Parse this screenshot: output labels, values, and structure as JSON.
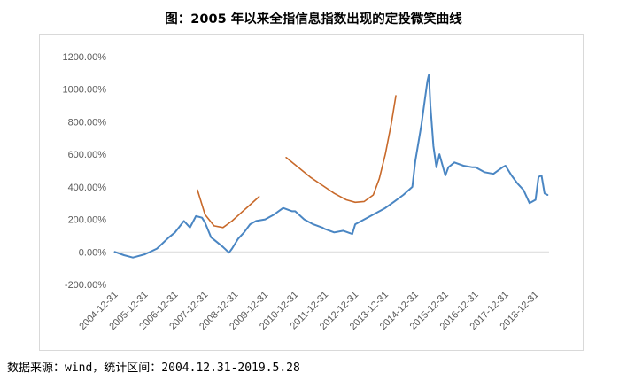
{
  "title": "图：2005 年以来全指信息指数出现的定投微笑曲线",
  "source": "数据来源：wind，统计区间：2004.12.31-2019.5.28",
  "colors": {
    "index_line": "#4a86c3",
    "smile_curve": "#c8692a",
    "axis": "#d9d9d9",
    "text": "#595959"
  },
  "chart_data": {
    "type": "line",
    "title": "图：2005 年以来全指信息指数出现的定投微笑曲线",
    "xlabel": "",
    "ylabel": "",
    "ylim": [
      -200,
      1200
    ],
    "yticks": [
      -200,
      0,
      200,
      400,
      600,
      800,
      1000,
      1200
    ],
    "ytick_labels": [
      "-200.00%",
      "0.00%",
      "200.00%",
      "400.00%",
      "600.00%",
      "800.00%",
      "1000.00%",
      "1200.00%"
    ],
    "xlim": [
      2004.95,
      2019.45
    ],
    "xticks": [
      "2004-12-31",
      "2005-12-31",
      "2006-12-31",
      "2007-12-31",
      "2008-12-31",
      "2009-12-31",
      "2010-12-31",
      "2011-12-31",
      "2012-12-31",
      "2013-12-31",
      "2014-12-31",
      "2015-12-31",
      "2016-12-31",
      "2017-12-31",
      "2018-12-31"
    ],
    "grid": false,
    "series": [
      {
        "kind": "index",
        "x": [
          2005.0,
          2005.3,
          2005.6,
          2006.0,
          2006.4,
          2006.8,
          2007.0,
          2007.3,
          2007.5,
          2007.7,
          2007.9,
          2008.0,
          2008.2,
          2008.4,
          2008.6,
          2008.8,
          2008.9,
          2009.1,
          2009.3,
          2009.5,
          2009.7,
          2010.0,
          2010.3,
          2010.6,
          2010.9,
          2011.0,
          2011.3,
          2011.6,
          2011.9,
          2012.0,
          2012.3,
          2012.6,
          2012.9,
          2013.0,
          2013.3,
          2013.6,
          2013.9,
          2014.0,
          2014.3,
          2014.6,
          2014.9,
          2015.0,
          2015.2,
          2015.4,
          2015.45,
          2015.5,
          2015.6,
          2015.7,
          2015.8,
          2016.0,
          2016.1,
          2016.3,
          2016.6,
          2016.9,
          2017.0,
          2017.3,
          2017.6,
          2017.9,
          2018.0,
          2018.2,
          2018.4,
          2018.6,
          2018.8,
          2019.0,
          2019.1,
          2019.2,
          2019.3,
          2019.4
        ],
        "values": [
          0,
          -20,
          -35,
          -15,
          20,
          90,
          120,
          190,
          150,
          220,
          210,
          180,
          90,
          60,
          30,
          -5,
          20,
          80,
          120,
          170,
          190,
          200,
          230,
          270,
          250,
          250,
          200,
          170,
          150,
          140,
          120,
          130,
          110,
          170,
          200,
          230,
          260,
          270,
          310,
          350,
          400,
          560,
          780,
          1050,
          1090,
          900,
          650,
          520,
          600,
          470,
          520,
          550,
          530,
          520,
          520,
          490,
          480,
          520,
          530,
          470,
          420,
          380,
          300,
          320,
          460,
          470,
          360,
          350
        ]
      },
      {
        "kind": "smile-1",
        "x": [
          2007.75,
          2008.0,
          2008.3,
          2008.6,
          2008.9,
          2009.2,
          2009.5,
          2009.8
        ],
        "values": [
          380,
          230,
          160,
          150,
          190,
          240,
          290,
          340
        ]
      },
      {
        "kind": "smile-2",
        "x": [
          2010.7,
          2011.1,
          2011.5,
          2011.9,
          2012.3,
          2012.7,
          2013.0,
          2013.3,
          2013.6,
          2013.8,
          2014.0,
          2014.2,
          2014.35
        ],
        "values": [
          580,
          520,
          460,
          410,
          360,
          320,
          305,
          310,
          350,
          450,
          600,
          790,
          960
        ]
      }
    ]
  }
}
